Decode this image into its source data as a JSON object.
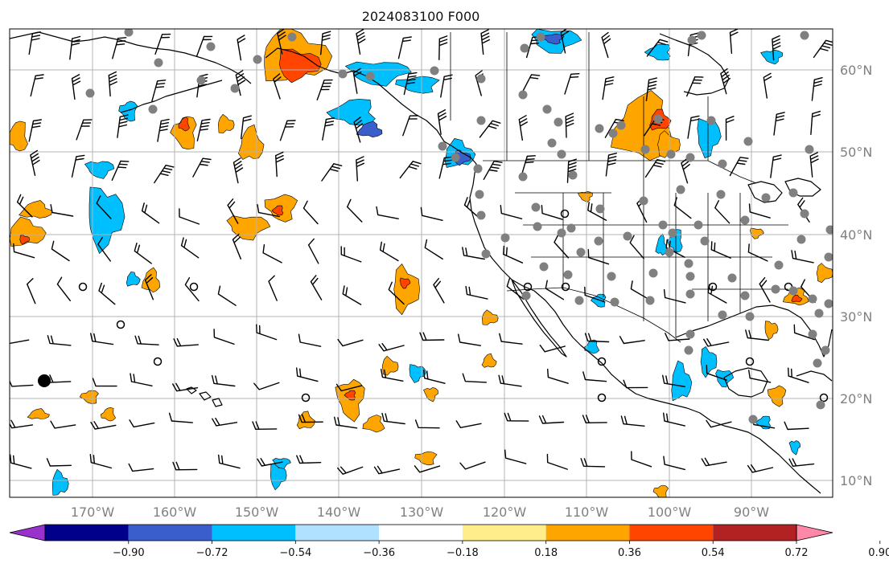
{
  "title": "2024083100 F000",
  "map": {
    "lon_range": [
      -180,
      -80
    ],
    "lat_range": [
      7,
      64
    ],
    "lon_ticks": [
      "170°W",
      "160°W",
      "150°W",
      "140°W",
      "130°W",
      "120°W",
      "110°W",
      "100°W",
      "90°W"
    ],
    "lat_ticks": [
      "10°N",
      "20°N",
      "30°N",
      "40°N",
      "50°N",
      "60°N"
    ],
    "contour_fields": {
      "orange": {
        "color": "#ffa500",
        "approx_value": 0.36
      },
      "red": {
        "color": "#ff4500",
        "approx_value": 0.54
      },
      "lightblue": {
        "color": "#00bfff",
        "approx_value": -0.36
      },
      "blue": {
        "color": "#3a5fcd",
        "approx_value": -0.54
      }
    },
    "features": {
      "barbs": "wind barbs on a regular lat/lon grid",
      "stations": "gray station dots over western North America",
      "large_marker": "black filled circle near 176°W 22°N"
    }
  },
  "colorbar": {
    "ticks": [
      "−0.90",
      "−0.72",
      "−0.54",
      "−0.36",
      "−0.18",
      "0.18",
      "0.36",
      "0.54",
      "0.72",
      "0.90"
    ],
    "colors": [
      "#9932cc",
      "#00008b",
      "#3a5fcd",
      "#00bfff",
      "#b0e2ff",
      "#ffffff",
      "#ffec8b",
      "#ffa500",
      "#ff4500",
      "#b22222",
      "#ff88a8"
    ],
    "extend": "both"
  }
}
